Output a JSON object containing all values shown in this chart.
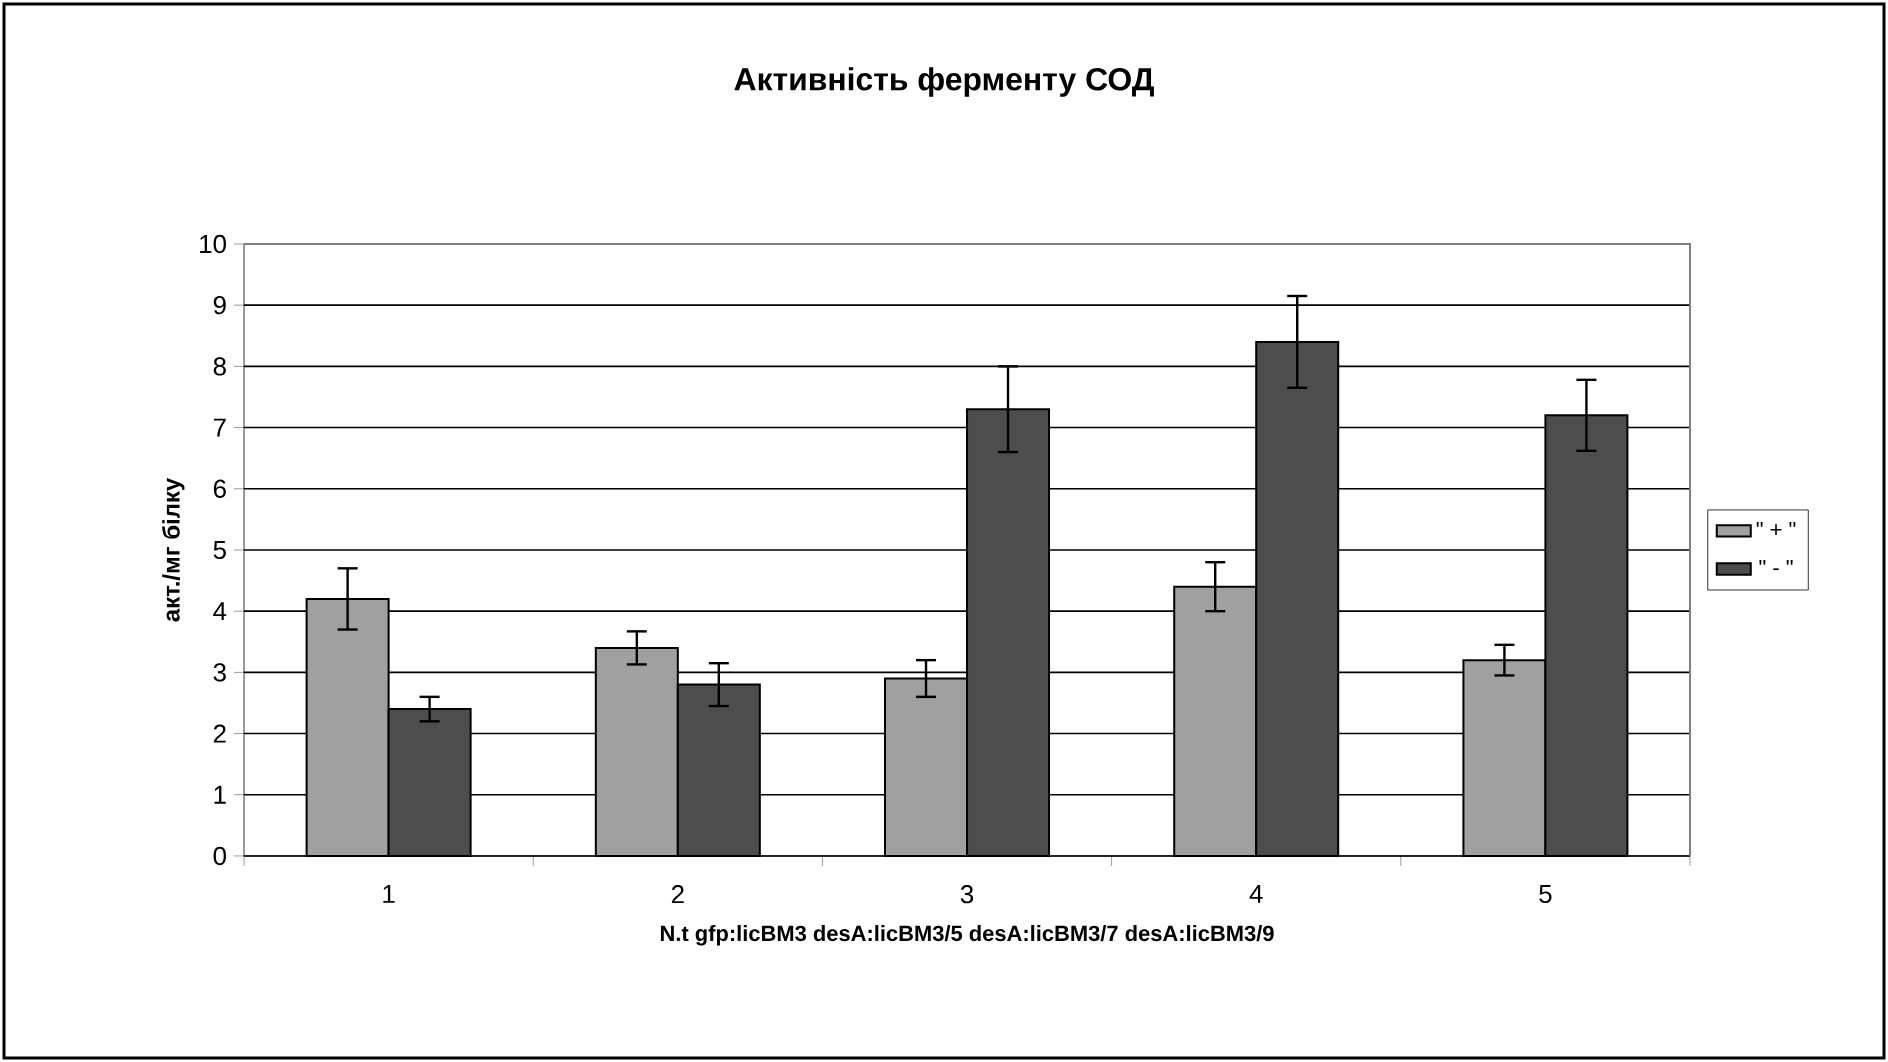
{
  "chart_data": {
    "type": "bar",
    "title": "Активність ферменту СОД",
    "xlabel": "N.t gfp:licBM3 desA:licBM3/5 desA:licBM3/7 desA:licBM3/9",
    "ylabel": "акт./мг білку",
    "categories": [
      "1",
      "2",
      "3",
      "4",
      "5"
    ],
    "series": [
      {
        "name": "\" + \"",
        "color": "#a0a0a0",
        "values": [
          4.2,
          3.4,
          2.9,
          4.4,
          3.2
        ],
        "errors": [
          0.5,
          0.27,
          0.3,
          0.4,
          0.25
        ]
      },
      {
        "name": "\" - \"",
        "color": "#4d4d4d",
        "values": [
          2.4,
          2.8,
          7.3,
          8.4,
          7.2
        ],
        "errors": [
          0.2,
          0.35,
          0.7,
          0.75,
          0.58
        ]
      }
    ],
    "ylim": [
      0,
      10
    ],
    "yticks": [
      0,
      1,
      2,
      3,
      4,
      5,
      6,
      7,
      8,
      9,
      10
    ],
    "grid": "y",
    "legend": "right"
  }
}
